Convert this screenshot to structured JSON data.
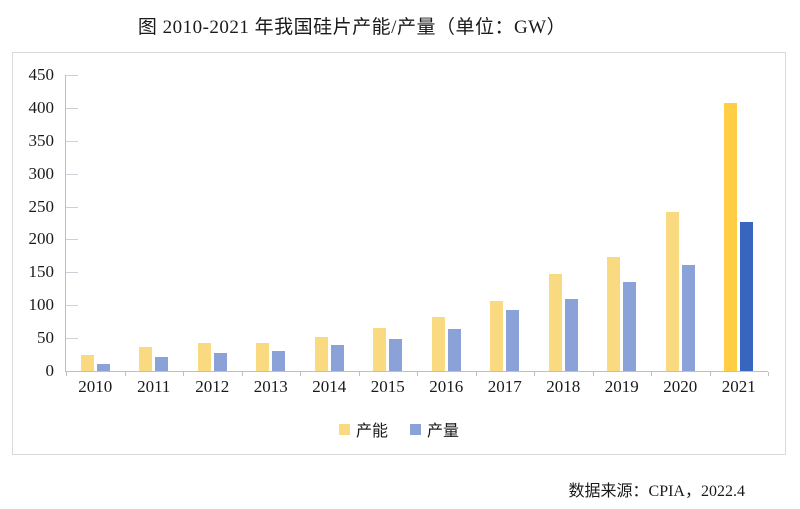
{
  "title": "图 2010-2021 年我国硅片产能/产量（单位：GW）",
  "source_note": "数据来源：CPIA，2022.4",
  "chart_data": {
    "type": "bar",
    "title": "图 2010-2021 年我国硅片产能/产量（单位：GW）",
    "unit": "GW",
    "categories": [
      "2010",
      "2011",
      "2012",
      "2013",
      "2014",
      "2015",
      "2016",
      "2017",
      "2018",
      "2019",
      "2020",
      "2021"
    ],
    "series": [
      {
        "key": "capacity",
        "name": "产能",
        "values": [
          25,
          37,
          42,
          43,
          51,
          65,
          82,
          106,
          147,
          174,
          241,
          407
        ],
        "color": "#FADA80",
        "highlight_color": "#FFCE45"
      },
      {
        "key": "output",
        "name": "产量",
        "values": [
          11,
          21,
          27,
          30,
          39,
          48,
          64,
          93,
          109,
          136,
          161,
          227
        ],
        "color": "#8AA2D8",
        "highlight_color": "#3766BF"
      }
    ],
    "highlight_category": "2021",
    "ylim": [
      0,
      450
    ],
    "ytick_step": 50,
    "xlabel": "",
    "ylabel": "",
    "grid": false,
    "legend_position": "bottom"
  }
}
